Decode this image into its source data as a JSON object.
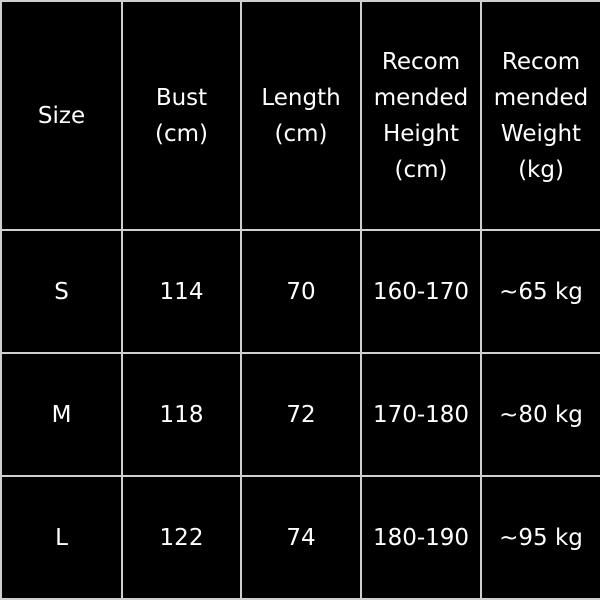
{
  "size_chart": {
    "headers": [
      "Size",
      "Bust\n(cm)",
      "Length\n(cm)",
      "Recom\nmended\nHeight\n(cm)",
      "Recom\nmended\nWeight\n(kg)"
    ],
    "rows": [
      [
        "S",
        "114",
        "70",
        "160-170",
        "~65 kg"
      ],
      [
        "M",
        "118",
        "72",
        "170-180",
        "~80 kg"
      ],
      [
        "L",
        "122",
        "74",
        "180-190",
        "~95 kg"
      ]
    ]
  }
}
